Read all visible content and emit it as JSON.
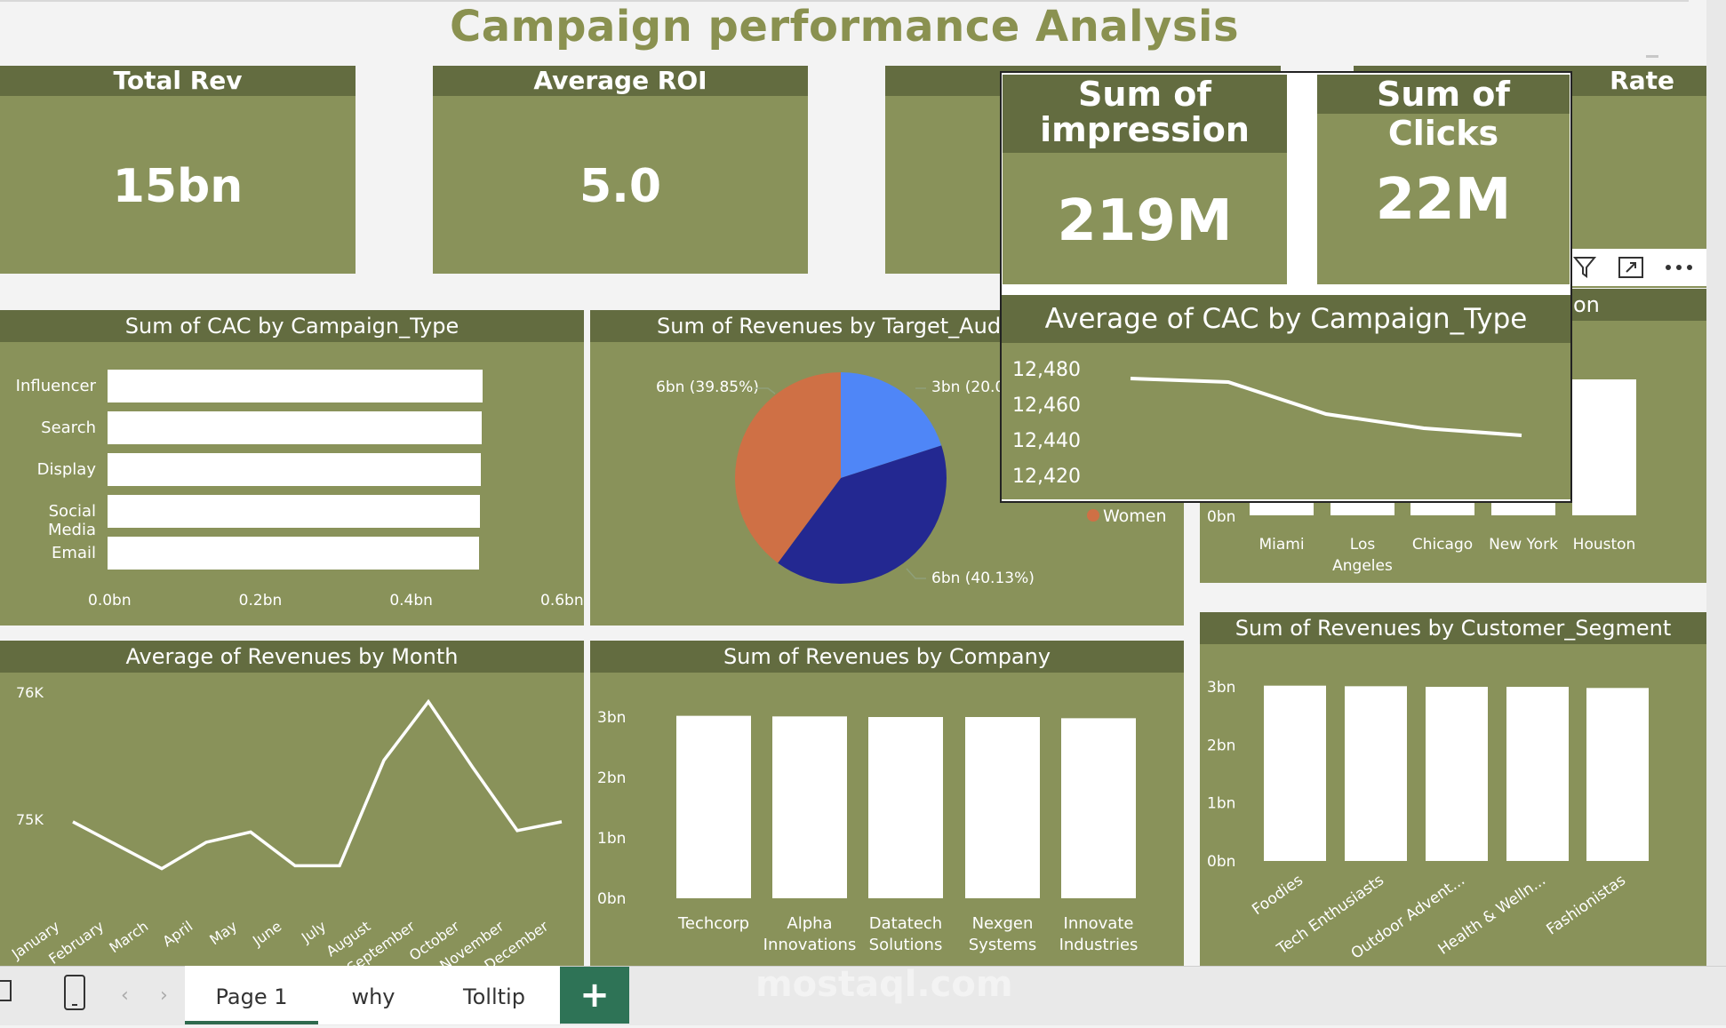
{
  "header": {
    "title": "Campaign performance Analysis"
  },
  "kpis": [
    {
      "title": "Total Rev",
      "value": "15bn"
    },
    {
      "title": "Average ROI",
      "value": "5.0"
    },
    {
      "title": "Rate"
    }
  ],
  "overlay_kpis": [
    {
      "title": "Sum of impression",
      "value": "219M"
    },
    {
      "title": "Sum of Clicks",
      "value": "22M"
    }
  ],
  "cac_by_type": {
    "title": "Sum of CAC by Campaign_Type",
    "categories": [
      "Influencer",
      "Search",
      "Display",
      "Social Media",
      "Email"
    ],
    "axis_ticks": [
      "0.0bn",
      "0.2bn",
      "0.4bn",
      "0.6bn"
    ]
  },
  "revenue_by_audience": {
    "title": "Sum of Revenues by Target_Audier",
    "labels": [
      "6bn (39.85%)",
      "3bn (20.0",
      "6bn (40.13%)"
    ],
    "legend": "Women"
  },
  "avg_cac_overlay": {
    "title": "Average of CAC by Campaign_Type",
    "y_ticks": [
      "12,480",
      "12,460",
      "12,440",
      "12,420"
    ]
  },
  "location_chart": {
    "title_fragment": "on",
    "zero_tick": "0bn",
    "categories": [
      "Miami",
      "Los Angeles",
      "Chicago",
      "New York",
      "Houston"
    ]
  },
  "revenue_by_month": {
    "title": "Average of Revenues by Month",
    "y_ticks": [
      "76K",
      "75K"
    ],
    "months": [
      "January",
      "February",
      "March",
      "April",
      "May",
      "June",
      "July",
      "August",
      "September",
      "October",
      "November",
      "December"
    ]
  },
  "revenue_by_company": {
    "title": "Sum of Revenues by Company",
    "y_ticks": [
      "3bn",
      "2bn",
      "1bn",
      "0bn"
    ],
    "categories": [
      "Techcorp",
      "Alpha Innovations",
      "Datatech Solutions",
      "Nexgen Systems",
      "Innovate Industries"
    ]
  },
  "revenue_by_segment": {
    "title": "Sum of Revenues by Customer_Segment",
    "y_ticks": [
      "3bn",
      "2bn",
      "1bn",
      "0bn"
    ],
    "categories": [
      "Foodies",
      "Tech Enthusiasts",
      "Outdoor Advent...",
      "Health & Welln...",
      "Fashionistas"
    ]
  },
  "tabs": {
    "page1": "Page 1",
    "why": "why",
    "tooltip": "Tolltip",
    "add": "+"
  },
  "watermark": "mostaql.com",
  "chart_data": [
    {
      "type": "bar",
      "title": "Sum of CAC by Campaign_Type",
      "categories": [
        "Influencer",
        "Search",
        "Display",
        "Social Media",
        "Email"
      ],
      "values": [
        0.5,
        0.5,
        0.5,
        0.5,
        0.5
      ],
      "xlim": [
        0,
        0.6
      ],
      "unit": "bn"
    },
    {
      "type": "pie",
      "title": "Sum of Revenues by Target_Audier",
      "values": [
        39.85,
        20.02,
        40.13
      ],
      "colors": [
        "#cf7045",
        "#4f86f7",
        "#232891"
      ]
    },
    {
      "type": "line",
      "title": "Average of CAC by Campaign_Type",
      "values": [
        12475,
        12473,
        12455,
        12447,
        12443
      ],
      "ylim": [
        12415,
        12485
      ]
    },
    {
      "type": "line",
      "title": "Average of Revenues by Month",
      "categories": [
        "January",
        "February",
        "March",
        "April",
        "May",
        "June",
        "July",
        "August",
        "September",
        "October",
        "November",
        "December"
      ],
      "values": [
        75.18,
        75.02,
        74.86,
        75.04,
        75.11,
        74.88,
        74.88,
        75.6,
        76.0,
        75.55,
        75.12,
        75.18
      ],
      "ylim": [
        74.5,
        76.15
      ],
      "unit": "K"
    },
    {
      "type": "bar",
      "title": "Sum of Revenues by Company",
      "categories": [
        "Techcorp",
        "Alpha Innovations",
        "Datatech Solutions",
        "Nexgen Systems",
        "Innovate Industries"
      ],
      "values": [
        3.02,
        3.01,
        3.0,
        3.0,
        2.98
      ],
      "ylim": [
        0,
        3.3
      ],
      "unit": "bn"
    },
    {
      "type": "bar",
      "title": "Sum of Revenues by Customer_Segment",
      "categories": [
        "Foodies",
        "Tech Enthusiasts",
        "Outdoor Advent...",
        "Health & Welln...",
        "Fashionistas"
      ],
      "values": [
        3.02,
        3.01,
        3.0,
        3.0,
        2.98
      ],
      "ylim": [
        0,
        3.2
      ],
      "unit": "bn"
    },
    {
      "type": "bar",
      "title": "Sum of Revenues by Location",
      "categories": [
        "Miami",
        "Los Angeles",
        "Chicago",
        "New York",
        "Houston"
      ],
      "values": [
        3.0,
        3.0,
        3.0,
        3.0,
        3.0
      ],
      "unit": "bn"
    }
  ]
}
